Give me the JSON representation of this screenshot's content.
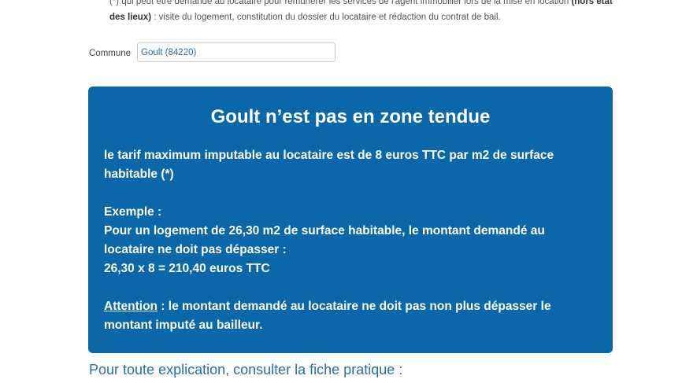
{
  "intro": {
    "line1": "(*) qui peut être demandé au locataire pour rémunérer les services de l'agent immobilier lors de la mise en location ",
    "line1_bold": "(hors état des lieux)",
    "line2": " : visite du logement, constitution du dossier du locataire et rédaction du contrat de bail."
  },
  "commune": {
    "label": "Commune",
    "value": "Goult (84220)"
  },
  "result": {
    "title": "Goult n’est pas en zone tendue",
    "tarif": "le tarif maximum imputable au locataire est de 8 euros TTC par m2 de surface habitable (*)",
    "exemple_label": "Exemple :",
    "exemple_text": "Pour un logement de 26,30 m2 de surface habitable, le montant demandé au locataire ne doit pas dépasser :",
    "calcul": "26,30 x 8 = 210,40 euros TTC",
    "attention_label": "Attention",
    "attention_text": " : le montant demandé au locataire ne doit pas non plus dépasser le montant imputé au bailleur.",
    "bg_color": "#0b68a8"
  },
  "fiche": {
    "text": "Pour toute explication, consulter la fiche pratique :"
  }
}
